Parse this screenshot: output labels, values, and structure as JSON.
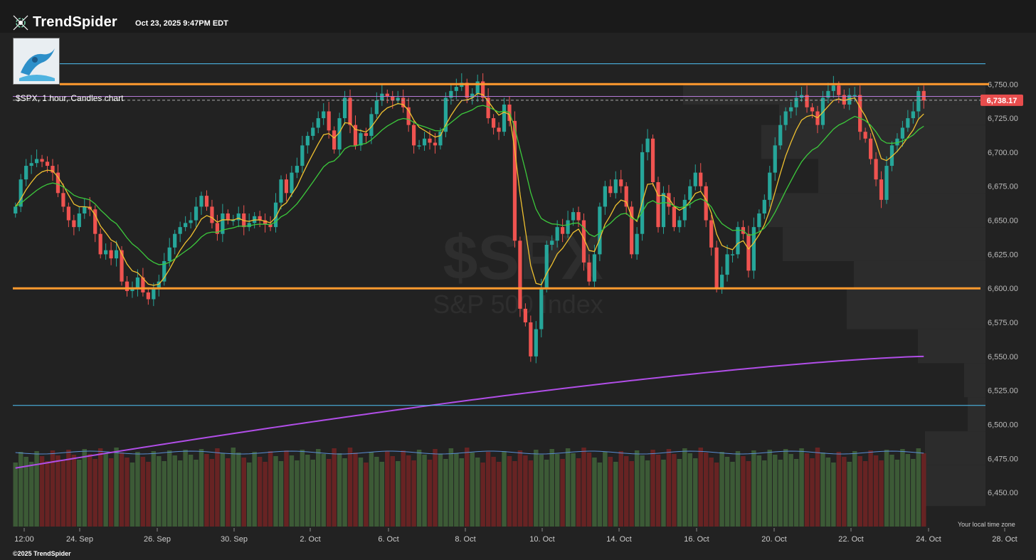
{
  "header": {
    "brand_bold": "TrendSpider",
    "timestamp": "Oct 23, 2025 9:47PM EDT"
  },
  "symbol_label": "$SPX, 1 hour, Candles chart",
  "watermark": {
    "symbol": "$SPX",
    "name": "S&P 500 Index"
  },
  "footer": {
    "copyright": "©2025 TrendSpider",
    "timezone_note": "Your local time zone"
  },
  "colors": {
    "background": "#222222",
    "bull": "#26a69a",
    "bear": "#ef5350",
    "ema_short": "#f0c130",
    "ema_long": "#3cc93c",
    "sma_long": "#b14ee8",
    "support_resistance": "#ff9a2e",
    "range_lines": "#4fc3f7",
    "price_tag": "#e84d4d"
  },
  "chart_data": {
    "type": "candlestick",
    "symbol": "$SPX",
    "interval": "1 hour",
    "last_price": "6,738.17",
    "y_range": [
      6425,
      6770
    ],
    "y_ticks": [
      "6,750.00",
      "6,725.00",
      "6,700.00",
      "6,675.00",
      "6,650.00",
      "6,625.00",
      "6,600.00",
      "6,575.00",
      "6,550.00",
      "6,525.00",
      "6,500.00",
      "6,475.00",
      "6,450.00"
    ],
    "x_ticks": [
      "12:00",
      "24. Sep",
      "26. Sep",
      "30. Sep",
      "2. Oct",
      "6. Oct",
      "8. Oct",
      "10. Oct",
      "14. Oct",
      "16. Oct",
      "20. Oct",
      "22. Oct",
      "24. Oct",
      "28. Oct"
    ],
    "horizontal_levels": [
      {
        "price": 6750,
        "kind": "resistance"
      },
      {
        "price": 6600,
        "kind": "support"
      },
      {
        "price": 6765,
        "kind": "range-top"
      },
      {
        "price": 6514,
        "kind": "range-bottom"
      },
      {
        "price": 6741,
        "kind": "range-mid"
      }
    ],
    "closes": [
      6660,
      6680,
      6690,
      6692,
      6695,
      6693,
      6690,
      6685,
      6670,
      6660,
      6650,
      6645,
      6655,
      6660,
      6658,
      6640,
      6625,
      6628,
      6622,
      6628,
      6605,
      6598,
      6600,
      6608,
      6597,
      6592,
      6600,
      6605,
      6620,
      6630,
      6640,
      6645,
      6648,
      6650,
      6660,
      6668,
      6660,
      6648,
      6640,
      6655,
      6650,
      6650,
      6655,
      6645,
      6648,
      6653,
      6650,
      6647,
      6645,
      6663,
      6680,
      6670,
      6685,
      6690,
      6705,
      6712,
      6718,
      6725,
      6730,
      6716,
      6702,
      6725,
      6740,
      6720,
      6705,
      6714,
      6712,
      6728,
      6738,
      6743,
      6741,
      6738,
      6740,
      6733,
      6720,
      6705,
      6705,
      6710,
      6707,
      6705,
      6715,
      6740,
      6745,
      6748,
      6751,
      6740,
      6743,
      6752,
      6740,
      6725,
      6718,
      6715,
      6735,
      6723,
      6635,
      6585,
      6575,
      6550,
      6570,
      6600,
      6632,
      6635,
      6645,
      6640,
      6650,
      6656,
      6650,
      6619,
      6605,
      6625,
      6660,
      6675,
      6670,
      6680,
      6675,
      6660,
      6625,
      6640,
      6700,
      6710,
      6678,
      6645,
      6670,
      6660,
      6645,
      6650,
      6665,
      6675,
      6685,
      6675,
      6650,
      6630,
      6600,
      6610,
      6625,
      6625,
      6645,
      6640,
      6613,
      6645,
      6655,
      6665,
      6685,
      6705,
      6720,
      6730,
      6733,
      6740,
      6742,
      6733,
      6730,
      6720,
      6740,
      6745,
      6749,
      6742,
      6735,
      6742,
      6742,
      6715,
      6710,
      6695,
      6680,
      6665,
      6690,
      6705,
      6710,
      6718,
      6725,
      6730,
      6745,
      6738
    ],
    "series": [
      {
        "name": "EMA short",
        "color": "#f0c130"
      },
      {
        "name": "EMA long",
        "color": "#3cc93c"
      },
      {
        "name": "SMA long",
        "color": "#b14ee8",
        "start": 6468,
        "end": 6550
      }
    ],
    "volume": "green and red bars under price"
  }
}
